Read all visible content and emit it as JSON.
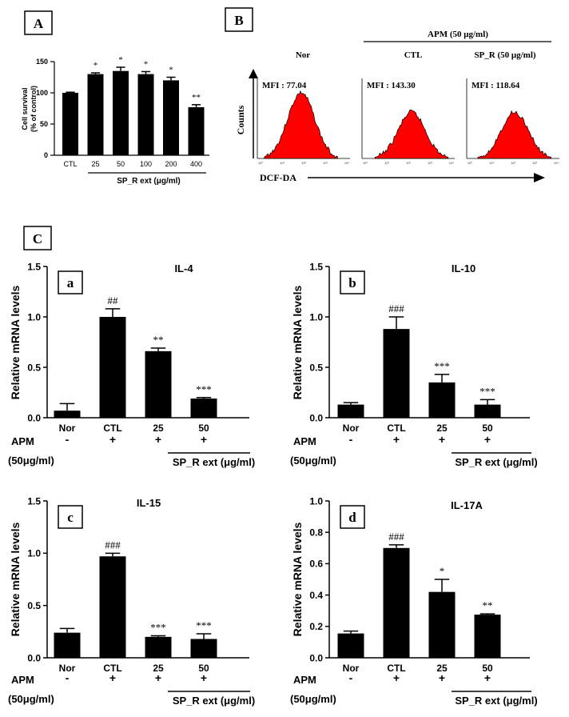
{
  "panel_labels": {
    "A": "A",
    "B": "B",
    "C": "C"
  },
  "chart_data": [
    {
      "id": "A",
      "type": "bar",
      "ylabel_line1": "Cell survival",
      "ylabel_line2": "(% of control)",
      "xlabel": "SP_R ext (μg/ml)",
      "categories": [
        "CTL",
        "25",
        "50",
        "100",
        "200",
        "400"
      ],
      "values": [
        100,
        130,
        135,
        130,
        120,
        77
      ],
      "errors": [
        1,
        2,
        6,
        4,
        5,
        4
      ],
      "sig": [
        "",
        "*",
        "*",
        "*",
        "*",
        "**"
      ],
      "ylim": [
        0,
        150
      ],
      "yticks": [
        "0",
        "50",
        "100",
        "150"
      ],
      "grid": false
    },
    {
      "id": "B",
      "type": "histogram",
      "treatment_label": "APM (50 μg/ml)",
      "ylabel": "Counts",
      "xlabel": "DCF-DA",
      "histograms": [
        {
          "title": "Nor",
          "mfi_label": "MFI : 77.04",
          "mfi": 77.04
        },
        {
          "title": "CTL",
          "mfi_label": "MFI : 143.30",
          "mfi": 143.3
        },
        {
          "title": "SP_R (50 μg/ml)",
          "mfi_label": "MFI : 118.64",
          "mfi": 118.64
        }
      ],
      "xticks": [
        "10⁰",
        "10¹",
        "10²",
        "10³",
        "10⁴"
      ],
      "fill_color": "#ff0000"
    },
    {
      "id": "a",
      "type": "bar",
      "title": "IL-4",
      "ylabel": "Relative mRNA levels",
      "categories": [
        "Nor",
        "CTL",
        "25",
        "50"
      ],
      "values": [
        0.07,
        1.0,
        0.66,
        0.19
      ],
      "errors": [
        0.07,
        0.08,
        0.03,
        0.01
      ],
      "sig": [
        "",
        "##",
        "**",
        "***"
      ],
      "ylim": [
        0,
        1.5
      ],
      "yticks": [
        "0.0",
        "0.5",
        "1.0",
        "1.5"
      ],
      "apm_signs": [
        "-",
        "+",
        "+",
        "+"
      ],
      "apm_label": "APM",
      "apm_conc": "(50μg/ml)",
      "bracket_label": "SP_R ext (μg/ml)"
    },
    {
      "id": "b",
      "type": "bar",
      "title": "IL-10",
      "ylabel": "Relative mRNA levels",
      "categories": [
        "Nor",
        "CTL",
        "25",
        "50"
      ],
      "values": [
        0.13,
        0.88,
        0.35,
        0.13
      ],
      "errors": [
        0.02,
        0.12,
        0.08,
        0.05
      ],
      "sig": [
        "",
        "###",
        "***",
        "***"
      ],
      "ylim": [
        0,
        1.5
      ],
      "yticks": [
        "0.0",
        "0.5",
        "1.0",
        "1.5"
      ],
      "apm_signs": [
        "-",
        "+",
        "+",
        "+"
      ],
      "apm_label": "APM",
      "apm_conc": "(50μg/ml)",
      "bracket_label": "SP_R ext (μg/ml)"
    },
    {
      "id": "c",
      "type": "bar",
      "title": "IL-15",
      "ylabel": "Relative mRNA levels",
      "categories": [
        "Nor",
        "CTL",
        "25",
        "50"
      ],
      "values": [
        0.24,
        0.97,
        0.2,
        0.18
      ],
      "errors": [
        0.04,
        0.03,
        0.01,
        0.05
      ],
      "sig": [
        "",
        "###",
        "***",
        "***"
      ],
      "ylim": [
        0,
        1.5
      ],
      "yticks": [
        "0.0",
        "0.5",
        "1.0",
        "1.5"
      ],
      "apm_signs": [
        "-",
        "+",
        "+",
        "+"
      ],
      "apm_label": "APM",
      "apm_conc": "(50μg/ml)",
      "bracket_label": "SP_R ext (μg/ml)"
    },
    {
      "id": "d",
      "type": "bar",
      "title": "IL-17A",
      "ylabel": "Relative mRNA levels",
      "categories": [
        "Nor",
        "CTL",
        "25",
        "50"
      ],
      "values": [
        0.155,
        0.7,
        0.42,
        0.275
      ],
      "errors": [
        0.015,
        0.02,
        0.08,
        0.005
      ],
      "sig": [
        "",
        "###",
        "*",
        "**"
      ],
      "ylim": [
        0,
        1.0
      ],
      "yticks": [
        "0.0",
        "0.2",
        "0.4",
        "0.6",
        "0.8",
        "1.0"
      ],
      "apm_signs": [
        "-",
        "+",
        "+",
        "+"
      ],
      "apm_label": "APM",
      "apm_conc": "(50μg/ml)",
      "bracket_label": "SP_R ext (μg/ml)"
    }
  ]
}
